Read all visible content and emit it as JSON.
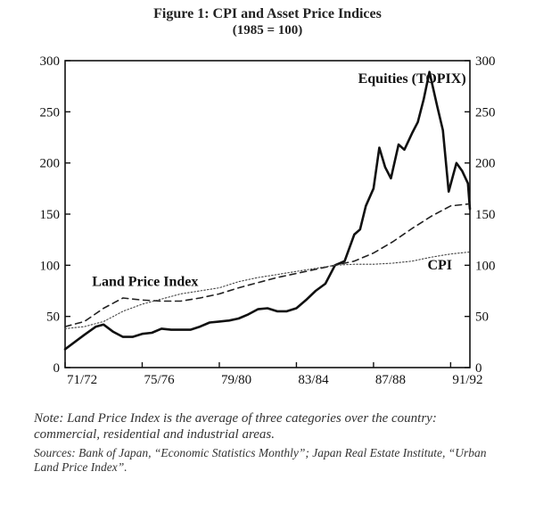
{
  "figure": {
    "title": "Figure 1: CPI and Asset Price Indices",
    "subtitle": "(1985 = 100)",
    "type": "line",
    "background_color": "#ffffff",
    "axis_color": "#111111",
    "tick_length": 6,
    "x": {
      "min": 1971,
      "max": 1992,
      "tick_values": [
        1971,
        1975,
        1979,
        1983,
        1987,
        1991
      ],
      "tick_labels": [
        "71/72",
        "75/76",
        "79/80",
        "83/84",
        "87/88",
        "91/92"
      ],
      "label_fontsize": 15
    },
    "y": {
      "min": 0,
      "max": 300,
      "tick_step": 50,
      "tick_values": [
        0,
        50,
        100,
        150,
        200,
        250,
        300
      ],
      "right_axis": true,
      "label_fontsize": 15
    },
    "series": [
      {
        "name": "Equities (TOPIX)",
        "label": "Equities (TOPIX)",
        "label_pos": {
          "x": 1986.2,
          "y": 278
        },
        "color": "#111111",
        "line_width": 2.6,
        "dash": "none",
        "data": [
          [
            1971,
            18
          ],
          [
            1972,
            32
          ],
          [
            1972.6,
            40
          ],
          [
            1973,
            42
          ],
          [
            1973.5,
            35
          ],
          [
            1974,
            30
          ],
          [
            1974.5,
            30
          ],
          [
            1975,
            33
          ],
          [
            1975.5,
            34
          ],
          [
            1976,
            38
          ],
          [
            1976.5,
            37
          ],
          [
            1977,
            37
          ],
          [
            1977.5,
            37
          ],
          [
            1978,
            40
          ],
          [
            1978.5,
            44
          ],
          [
            1979,
            45
          ],
          [
            1979.5,
            46
          ],
          [
            1980,
            48
          ],
          [
            1980.5,
            52
          ],
          [
            1981,
            57
          ],
          [
            1981.5,
            58
          ],
          [
            1982,
            55
          ],
          [
            1982.5,
            55
          ],
          [
            1983,
            58
          ],
          [
            1983.5,
            66
          ],
          [
            1984,
            75
          ],
          [
            1984.5,
            82
          ],
          [
            1985,
            100
          ],
          [
            1985.5,
            104
          ],
          [
            1986,
            130
          ],
          [
            1986.3,
            135
          ],
          [
            1986.6,
            158
          ],
          [
            1987,
            175
          ],
          [
            1987.3,
            215
          ],
          [
            1987.6,
            196
          ],
          [
            1987.9,
            185
          ],
          [
            1988.3,
            218
          ],
          [
            1988.6,
            213
          ],
          [
            1989,
            229
          ],
          [
            1989.3,
            240
          ],
          [
            1989.6,
            262
          ],
          [
            1989.9,
            289
          ],
          [
            1990.3,
            256
          ],
          [
            1990.6,
            232
          ],
          [
            1990.9,
            172
          ],
          [
            1991.3,
            200
          ],
          [
            1991.6,
            192
          ],
          [
            1991.9,
            180
          ],
          [
            1992,
            155
          ]
        ]
      },
      {
        "name": "Land Price Index",
        "label": "Land Price Index",
        "label_pos": {
          "x": 1972.4,
          "y": 80
        },
        "color": "#222222",
        "line_width": 1.6,
        "dash": "7,5",
        "data": [
          [
            1971,
            40
          ],
          [
            1972,
            45
          ],
          [
            1973,
            58
          ],
          [
            1974,
            68
          ],
          [
            1975,
            66
          ],
          [
            1976,
            65
          ],
          [
            1977,
            65
          ],
          [
            1978,
            68
          ],
          [
            1979,
            72
          ],
          [
            1980,
            78
          ],
          [
            1981,
            83
          ],
          [
            1982,
            88
          ],
          [
            1983,
            92
          ],
          [
            1984,
            96
          ],
          [
            1985,
            100
          ],
          [
            1986,
            104
          ],
          [
            1987,
            112
          ],
          [
            1988,
            123
          ],
          [
            1989,
            136
          ],
          [
            1990,
            148
          ],
          [
            1991,
            158
          ],
          [
            1992,
            160
          ]
        ]
      },
      {
        "name": "CPI",
        "label": "CPI",
        "label_pos": {
          "x": 1989.8,
          "y": 96
        },
        "color": "#444444",
        "line_width": 1.1,
        "dash": "1.5,2.2",
        "data": [
          [
            1971,
            38
          ],
          [
            1972,
            40
          ],
          [
            1973,
            45
          ],
          [
            1974,
            55
          ],
          [
            1975,
            62
          ],
          [
            1976,
            67
          ],
          [
            1977,
            72
          ],
          [
            1978,
            75
          ],
          [
            1979,
            78
          ],
          [
            1980,
            84
          ],
          [
            1981,
            88
          ],
          [
            1982,
            91
          ],
          [
            1983,
            94
          ],
          [
            1984,
            97
          ],
          [
            1985,
            100
          ],
          [
            1986,
            101
          ],
          [
            1987,
            101
          ],
          [
            1988,
            102
          ],
          [
            1989,
            104
          ],
          [
            1990,
            108
          ],
          [
            1991,
            111
          ],
          [
            1992,
            113
          ]
        ]
      }
    ],
    "caption": "Note: Land Price Index is the average of three categories over the country: commercial, residential and industrial areas.",
    "sources": "Sources: Bank of Japan, “Economic Statistics Monthly”; Japan Real Estate Institute, “Urban Land Price Index”."
  }
}
